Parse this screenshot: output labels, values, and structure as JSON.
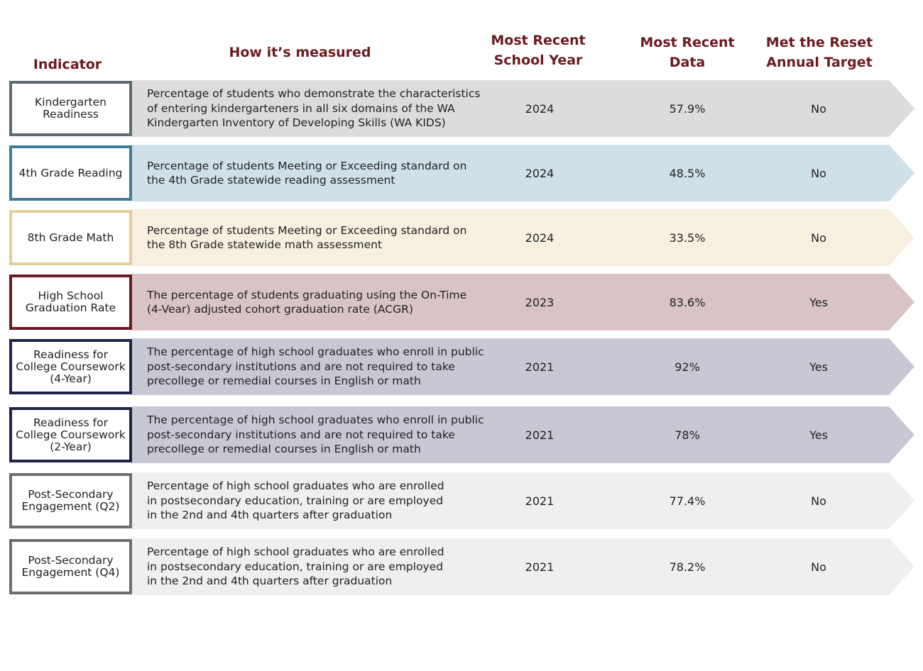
{
  "headers": {
    "indicator": "Indicator",
    "measured": "How it’s measured",
    "year": "Most Recent\nSchool Year",
    "data": "Most Recent\nData",
    "target": "Met the Reset\nAnnual Target"
  },
  "rows": [
    {
      "indicator": "Kindergarten\nReadiness",
      "measured": "Percentage of students who demonstrate the characteristics\nof entering kindergarteners in all six domains of the WA\nKindergarten Inventory of Developing Skills (WA KIDS)",
      "year": "2024",
      "data": "57.9%",
      "met": "No",
      "band_color": "#dcdcdc",
      "border_color": "#5f6a70"
    },
    {
      "indicator": "4th Grade Reading",
      "measured": "Percentage of students Meeting or Exceeding standard on\nthe 4th Grade statewide reading assessment",
      "year": "2024",
      "data": "48.5%",
      "met": "No",
      "band_color": "#cfe0e8",
      "border_color": "#3a7e9c"
    },
    {
      "indicator": "8th Grade Math",
      "measured": "Percentage of students Meeting or Exceeding standard on\nthe 8th Grade statewide math assessment",
      "year": "2024",
      "data": "33.5%",
      "met": "No",
      "band_color": "#f7f0e1",
      "border_color": "#e3cf95"
    },
    {
      "indicator": "High School\nGraduation Rate",
      "measured": "The percentage of students graduating using the On-Time\n(4-Vear) adjusted cohort graduation rate (ACGR)",
      "year": "2023",
      "data": "83.6%",
      "met": "Yes",
      "band_color": "#d9c3c4",
      "border_color": "#6b1a1e"
    },
    {
      "indicator": "Readiness for\nCollege Coursework\n(4-Year)",
      "measured": "The percentage of high school graduates who enroll in public\npost-secondary institutions and are not required to take\nprecollege or remedial courses in English or math",
      "year": "2021",
      "data": "92%",
      "met": "Yes",
      "band_color": "#c8c8d4",
      "border_color": "#1f2347"
    },
    {
      "indicator": "Readiness for\nCollege Coursework\n(2-Year)",
      "measured": "The percentage of high school graduates who enroll in public\npost-secondary institutions and are not required to take\nprecollege or remedial courses in English or math",
      "year": "2021",
      "data": "78%",
      "met": "Yes",
      "band_color": "#c8c8d4",
      "border_color": "#1f2347"
    },
    {
      "indicator": "Post-Secondary\nEngagement (Q2)",
      "measured": "Percentage of high school graduates who are enrolled\nin postsecondary education, training or are employed\nin the 2nd and 4th quarters after graduation",
      "year": "2021",
      "data": "77.4%",
      "met": "No",
      "band_color": "#efefef",
      "border_color": "#6e6e6e"
    },
    {
      "indicator": "Post-Secondary\nEngagement (Q4)",
      "measured": "Percentage of high school graduates who are enrolled\nin postsecondary education, training or are employed\nin the 2nd and 4th quarters after graduation",
      "year": "2021",
      "data": "78.2%",
      "met": "No",
      "band_color": "#efefef",
      "border_color": "#6e6e6e"
    }
  ]
}
